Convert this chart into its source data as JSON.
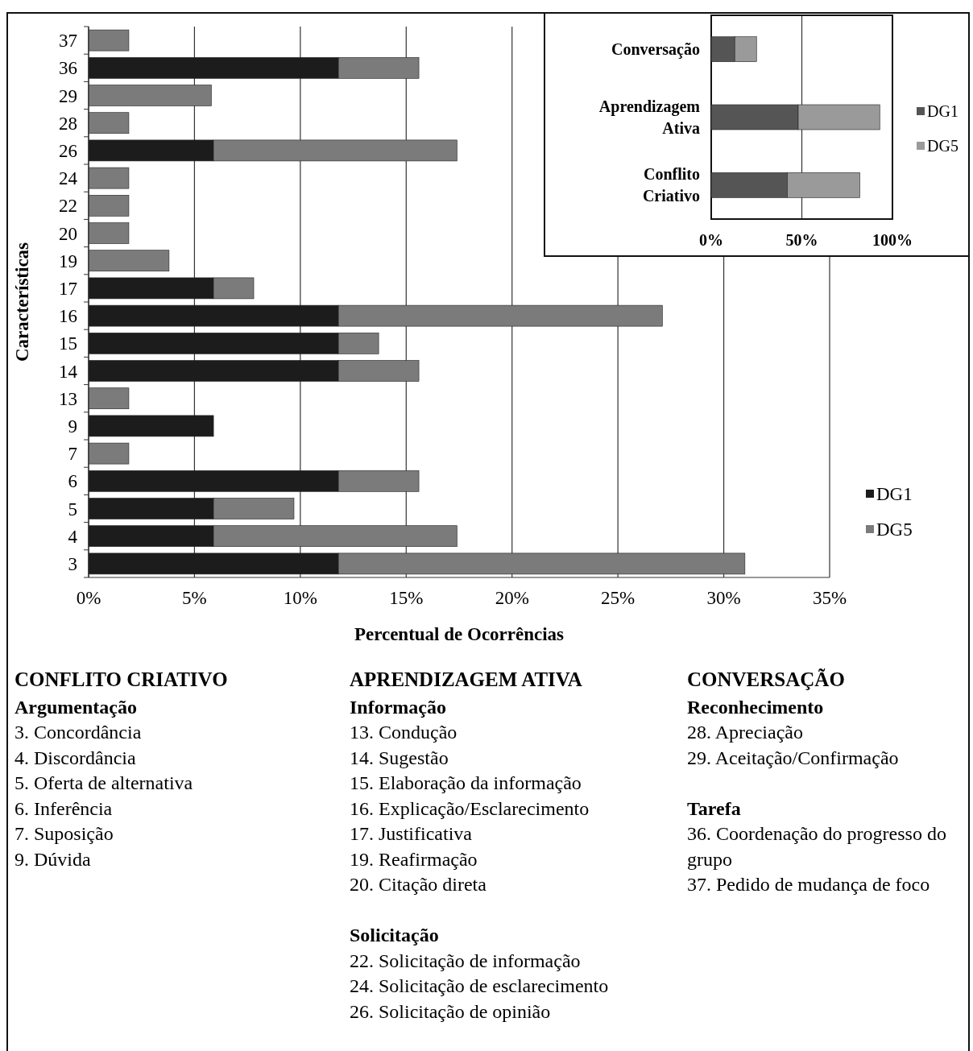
{
  "chart_data": [
    {
      "type": "bar",
      "orientation": "horizontal",
      "stacked": true,
      "xlabel": "Percentual de Ocorrências",
      "ylabel": "Características",
      "categories": [
        "37",
        "36",
        "29",
        "28",
        "26",
        "24",
        "22",
        "20",
        "19",
        "17",
        "16",
        "15",
        "14",
        "13",
        "9",
        "7",
        "6",
        "5",
        "4",
        "3"
      ],
      "series": [
        {
          "name": "DG1",
          "color": "#1c1c1c",
          "values": [
            null,
            11.8,
            null,
            null,
            5.9,
            null,
            null,
            null,
            null,
            5.9,
            11.8,
            11.8,
            11.8,
            null,
            5.9,
            null,
            11.8,
            5.9,
            5.9,
            11.8
          ]
        },
        {
          "name": "DG5",
          "color": "#7b7b7b",
          "values": [
            1.9,
            3.8,
            5.8,
            1.9,
            11.5,
            1.9,
            1.9,
            1.9,
            3.8,
            1.9,
            15.3,
            1.9,
            3.8,
            1.9,
            null,
            1.9,
            3.8,
            3.8,
            11.5,
            19.2
          ]
        }
      ],
      "xlim": [
        0,
        35
      ],
      "xticks": [
        {
          "value": 0,
          "label": "0%"
        },
        {
          "value": 5,
          "label": "5%"
        },
        {
          "value": 10,
          "label": "10%"
        },
        {
          "value": 15,
          "label": "15%"
        },
        {
          "value": 20,
          "label": "20%"
        },
        {
          "value": 25,
          "label": "25%"
        },
        {
          "value": 30,
          "label": "30%"
        },
        {
          "value": 35,
          "label": "35%"
        }
      ],
      "grid": "x",
      "legend": "right"
    },
    {
      "type": "bar",
      "orientation": "horizontal",
      "stacked": true,
      "categories": [
        "Conversação",
        "Aprendizagem Ativa",
        "Conflito Criativo"
      ],
      "series": [
        {
          "name": "DG1",
          "color": "#555555",
          "values": [
            13,
            48,
            42
          ]
        },
        {
          "name": "DG5",
          "color": "#9a9a9a",
          "values": [
            12,
            45,
            40
          ]
        }
      ],
      "xlim": [
        0,
        100
      ],
      "xticks": [
        {
          "value": 0,
          "label": "0%"
        },
        {
          "value": 50,
          "label": "50%"
        },
        {
          "value": 100,
          "label": "100%"
        }
      ],
      "grid": "x",
      "legend": "right"
    },
    {
      "type": "other",
      "title": "CONFLITO CRIATIVO",
      "subtitle": "Argumentação",
      "annotations": [
        "3. Concordância",
        "4. Discordância",
        "5. Oferta de alternativa",
        "6. Inferência",
        "7. Suposição",
        "9. Dúvida"
      ]
    },
    {
      "type": "other",
      "title": "APRENDIZAGEM ATIVA",
      "subtitle": "Informação",
      "annotations": [
        "13. Condução",
        "14. Sugestão",
        "15. Elaboração da informação",
        "16. Explicação/Esclarecimento",
        "17. Justificativa",
        "19. Reafirmação",
        "20. Citação direta"
      ]
    },
    {
      "type": "other",
      "subtitle": "Solicitação",
      "annotations": [
        "22. Solicitação de informação",
        "24. Solicitação de esclarecimento",
        "26. Solicitação de opinião"
      ]
    },
    {
      "type": "other",
      "title": "CONVERSAÇÃO",
      "subtitle": "Reconhecimento",
      "annotations": [
        "28. Apreciação",
        "29. Aceitação/Confirmação"
      ]
    },
    {
      "type": "other",
      "subtitle": "Tarefa",
      "annotations": [
        "36. Coordenação do progresso do grupo",
        "37. Pedido de mudança de foco"
      ]
    }
  ]
}
